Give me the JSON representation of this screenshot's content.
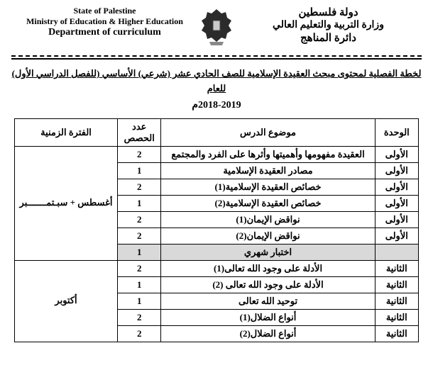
{
  "header": {
    "left": {
      "line1": "State of Palestine",
      "line2": "Ministry of Education & Higher Education",
      "line3": "Department  of  curriculum"
    },
    "right": {
      "line1": "دولة فلسطين",
      "line2": "وزارة التربية والتعليم العالي",
      "line3": "دائرة المناهج"
    }
  },
  "title": "لخطة الفصلية لمحتوى مبحث العقيدة الإسلامية  للصف الحادي عشر  (شرعي) الأساسي (للفصل الدراسي الأول) للعام",
  "year": "2018-2019م",
  "table": {
    "headers": {
      "unit": "الوحدة",
      "topic": "موضوع الدرس",
      "count": "عدد الحصص",
      "period": "الفترة الزمنية"
    },
    "rows": [
      {
        "unit": "الأولى",
        "topic": "العقيدة مفهومها وأهميتها وأثرها على الفرد والمجتمع",
        "count": "2"
      },
      {
        "unit": "الأولى",
        "topic": "مصادر العقيدة الإسلامية",
        "count": "1"
      },
      {
        "unit": "الأولى",
        "topic": "خصائص العقيدة الإسلامية(1)",
        "count": "2"
      },
      {
        "unit": "الأولى",
        "topic": "خصائص العقيدة الإسلامية(2)",
        "count": "1"
      },
      {
        "unit": "الأولى",
        "topic": "نواقض الإيمان(1)",
        "count": "2"
      },
      {
        "unit": "الأولى",
        "topic": "نواقض الإيمان(2)",
        "count": "2"
      },
      {
        "unit": "",
        "topic": "اختبار شهري",
        "count": "1",
        "shaded": true
      },
      {
        "unit": "الثانية",
        "topic": "الأدلة على وجود الله تعالى(1)",
        "count": "2"
      },
      {
        "unit": "الثانية",
        "topic": "الأدلة على وجود الله تعالى (2)",
        "count": "1"
      },
      {
        "unit": "الثانية",
        "topic": "توحيد الله تعالى",
        "count": "1"
      },
      {
        "unit": "الثانية",
        "topic": "أنواع الضلال(1)",
        "count": "2"
      },
      {
        "unit": "الثانية",
        "topic": "أنواع الضلال(2)",
        "count": "2"
      }
    ],
    "periods": [
      {
        "label": "أغسطس + سبـتمـــــــبر",
        "span": 7,
        "startRow": 0
      },
      {
        "label": "أكتوبر",
        "span": 5,
        "startRow": 7
      }
    ]
  },
  "colors": {
    "shaded": "#d9d9d9",
    "border": "#000000",
    "background": "#ffffff",
    "text": "#000000"
  }
}
